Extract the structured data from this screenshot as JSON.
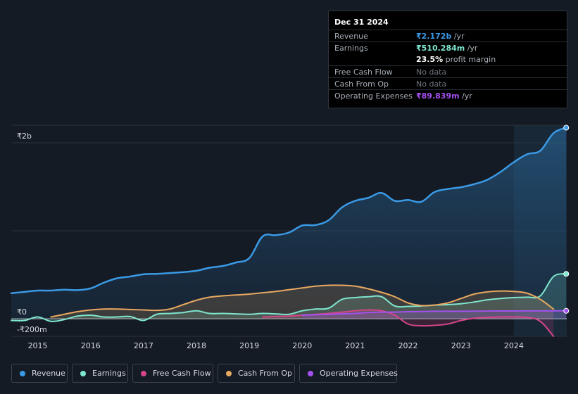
{
  "tooltip": {
    "date": "Dec 31 2024",
    "rows": [
      {
        "label": "Revenue",
        "value": "₹2.172b",
        "suffix": " /yr",
        "color": "#3a9ae6"
      },
      {
        "label": "Earnings",
        "value": "₹510.284m",
        "suffix": " /yr",
        "color": "#7ee6cf"
      },
      {
        "label": "",
        "value": "23.5%",
        "suffix": " profit margin",
        "color": "#ffffff"
      },
      {
        "label": "Free Cash Flow",
        "value": "No data",
        "suffix": "",
        "color": "#6d747d"
      },
      {
        "label": "Cash From Op",
        "value": "No data",
        "suffix": "",
        "color": "#6d747d"
      },
      {
        "label": "Operating Expenses",
        "value": "₹89.839m",
        "suffix": " /yr",
        "color": "#a550f0"
      }
    ]
  },
  "legend": [
    {
      "label": "Revenue",
      "color": "#3a9ae6"
    },
    {
      "label": "Earnings",
      "color": "#7ee6cf"
    },
    {
      "label": "Free Cash Flow",
      "color": "#d4458a"
    },
    {
      "label": "Cash From Op",
      "color": "#e8a860"
    },
    {
      "label": "Operating Expenses",
      "color": "#a550f0"
    }
  ],
  "chart_data": {
    "type": "area",
    "currency": "₹",
    "y_unit": "millions",
    "ylim": [
      -200,
      2200
    ],
    "xlim": [
      2014.5,
      2025.0
    ],
    "y_tick_labels": [
      {
        "value": 2000,
        "label": "₹2b"
      },
      {
        "value": 0,
        "label": "₹0"
      },
      {
        "value": -200,
        "label": "-₹200m"
      }
    ],
    "x_ticks": [
      2015,
      2016,
      2017,
      2018,
      2019,
      2020,
      2021,
      2022,
      2023,
      2024
    ],
    "x_tick_labels": [
      "2015",
      "2016",
      "2017",
      "2018",
      "2019",
      "2020",
      "2021",
      "2022",
      "2023",
      "2024"
    ],
    "highlight_start": 2024.0,
    "series": [
      {
        "name": "Revenue",
        "color": "#3a9ae6",
        "points": [
          [
            2014.5,
            290
          ],
          [
            2014.75,
            305
          ],
          [
            2015.0,
            320
          ],
          [
            2015.25,
            320
          ],
          [
            2015.5,
            330
          ],
          [
            2015.75,
            325
          ],
          [
            2016.0,
            345
          ],
          [
            2016.25,
            410
          ],
          [
            2016.5,
            460
          ],
          [
            2016.75,
            480
          ],
          [
            2017.0,
            505
          ],
          [
            2017.25,
            510
          ],
          [
            2017.5,
            520
          ],
          [
            2017.75,
            530
          ],
          [
            2018.0,
            545
          ],
          [
            2018.25,
            580
          ],
          [
            2018.5,
            600
          ],
          [
            2018.75,
            640
          ],
          [
            2019.0,
            690
          ],
          [
            2019.25,
            935
          ],
          [
            2019.5,
            950
          ],
          [
            2019.75,
            980
          ],
          [
            2020.0,
            1060
          ],
          [
            2020.25,
            1065
          ],
          [
            2020.5,
            1120
          ],
          [
            2020.75,
            1265
          ],
          [
            2021.0,
            1340
          ],
          [
            2021.25,
            1375
          ],
          [
            2021.5,
            1430
          ],
          [
            2021.75,
            1340
          ],
          [
            2022.0,
            1350
          ],
          [
            2022.25,
            1330
          ],
          [
            2022.5,
            1440
          ],
          [
            2022.75,
            1475
          ],
          [
            2023.0,
            1495
          ],
          [
            2023.25,
            1530
          ],
          [
            2023.5,
            1580
          ],
          [
            2023.75,
            1670
          ],
          [
            2024.0,
            1780
          ],
          [
            2024.25,
            1870
          ],
          [
            2024.5,
            1910
          ],
          [
            2024.75,
            2110
          ],
          [
            2024.99,
            2172
          ]
        ]
      },
      {
        "name": "Earnings",
        "color": "#7ee6cf",
        "points": [
          [
            2014.5,
            -20
          ],
          [
            2014.75,
            -20
          ],
          [
            2015.0,
            20
          ],
          [
            2015.25,
            -30
          ],
          [
            2015.5,
            -10
          ],
          [
            2015.75,
            30
          ],
          [
            2016.0,
            40
          ],
          [
            2016.25,
            20
          ],
          [
            2016.5,
            20
          ],
          [
            2016.75,
            25
          ],
          [
            2017.0,
            -20
          ],
          [
            2017.25,
            50
          ],
          [
            2017.5,
            60
          ],
          [
            2017.75,
            70
          ],
          [
            2018.0,
            90
          ],
          [
            2018.25,
            60
          ],
          [
            2018.5,
            60
          ],
          [
            2018.75,
            55
          ],
          [
            2019.0,
            50
          ],
          [
            2019.25,
            60
          ],
          [
            2019.5,
            55
          ],
          [
            2019.75,
            50
          ],
          [
            2020.0,
            90
          ],
          [
            2020.25,
            110
          ],
          [
            2020.5,
            120
          ],
          [
            2020.75,
            220
          ],
          [
            2021.0,
            240
          ],
          [
            2021.25,
            250
          ],
          [
            2021.5,
            250
          ],
          [
            2021.75,
            145
          ],
          [
            2022.0,
            140
          ],
          [
            2022.25,
            145
          ],
          [
            2022.5,
            155
          ],
          [
            2022.75,
            160
          ],
          [
            2023.0,
            170
          ],
          [
            2023.25,
            190
          ],
          [
            2023.5,
            215
          ],
          [
            2023.75,
            230
          ],
          [
            2024.0,
            240
          ],
          [
            2024.25,
            245
          ],
          [
            2024.5,
            260
          ],
          [
            2024.75,
            480
          ],
          [
            2024.99,
            510
          ]
        ]
      },
      {
        "name": "Free Cash Flow",
        "color": "#d4458a",
        "points": [
          [
            2019.25,
            20
          ],
          [
            2019.5,
            25
          ],
          [
            2019.75,
            30
          ],
          [
            2020.0,
            40
          ],
          [
            2020.25,
            50
          ],
          [
            2020.5,
            60
          ],
          [
            2020.75,
            75
          ],
          [
            2021.0,
            90
          ],
          [
            2021.25,
            100
          ],
          [
            2021.5,
            90
          ],
          [
            2021.75,
            40
          ],
          [
            2022.0,
            -60
          ],
          [
            2022.25,
            -80
          ],
          [
            2022.5,
            -75
          ],
          [
            2022.75,
            -60
          ],
          [
            2023.0,
            -20
          ],
          [
            2023.25,
            5
          ],
          [
            2023.5,
            15
          ],
          [
            2023.75,
            20
          ],
          [
            2024.0,
            20
          ],
          [
            2024.25,
            15
          ],
          [
            2024.5,
            -30
          ],
          [
            2024.75,
            -200
          ]
        ]
      },
      {
        "name": "Cash From Op",
        "color": "#e8a860",
        "points": [
          [
            2015.25,
            20
          ],
          [
            2015.5,
            50
          ],
          [
            2015.75,
            80
          ],
          [
            2016.0,
            100
          ],
          [
            2016.25,
            110
          ],
          [
            2016.5,
            110
          ],
          [
            2016.75,
            105
          ],
          [
            2017.0,
            100
          ],
          [
            2017.25,
            95
          ],
          [
            2017.5,
            110
          ],
          [
            2017.75,
            160
          ],
          [
            2018.0,
            210
          ],
          [
            2018.25,
            245
          ],
          [
            2018.5,
            260
          ],
          [
            2018.75,
            270
          ],
          [
            2019.0,
            280
          ],
          [
            2019.25,
            295
          ],
          [
            2019.5,
            310
          ],
          [
            2019.75,
            330
          ],
          [
            2020.0,
            350
          ],
          [
            2020.25,
            370
          ],
          [
            2020.5,
            380
          ],
          [
            2020.75,
            380
          ],
          [
            2021.0,
            370
          ],
          [
            2021.25,
            340
          ],
          [
            2021.5,
            300
          ],
          [
            2021.75,
            250
          ],
          [
            2022.0,
            180
          ],
          [
            2022.25,
            150
          ],
          [
            2022.5,
            155
          ],
          [
            2022.75,
            180
          ],
          [
            2023.0,
            230
          ],
          [
            2023.25,
            280
          ],
          [
            2023.5,
            305
          ],
          [
            2023.75,
            315
          ],
          [
            2024.0,
            310
          ],
          [
            2024.25,
            290
          ],
          [
            2024.5,
            220
          ],
          [
            2024.75,
            110
          ]
        ]
      },
      {
        "name": "Operating Expenses",
        "color": "#a550f0",
        "points": [
          [
            2020.0,
            40
          ],
          [
            2020.25,
            45
          ],
          [
            2020.5,
            50
          ],
          [
            2020.75,
            55
          ],
          [
            2021.0,
            60
          ],
          [
            2021.25,
            70
          ],
          [
            2021.5,
            75
          ],
          [
            2021.75,
            75
          ],
          [
            2022.0,
            80
          ],
          [
            2022.25,
            82
          ],
          [
            2022.5,
            85
          ],
          [
            2022.75,
            85
          ],
          [
            2023.0,
            85
          ],
          [
            2023.25,
            86
          ],
          [
            2023.5,
            87
          ],
          [
            2023.75,
            88
          ],
          [
            2024.0,
            88
          ],
          [
            2024.25,
            89
          ],
          [
            2024.5,
            89
          ],
          [
            2024.75,
            89.5
          ],
          [
            2024.99,
            89.839
          ]
        ]
      }
    ]
  }
}
